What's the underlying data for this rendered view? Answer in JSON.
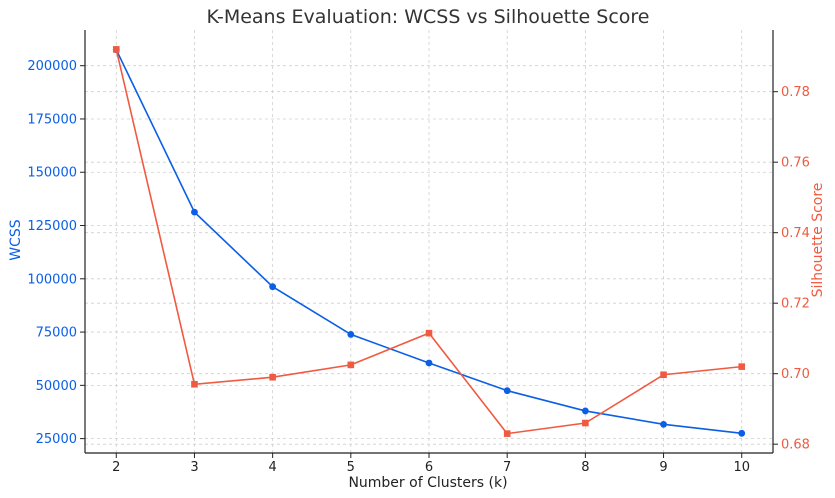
{
  "chart_data": {
    "type": "line",
    "title": "K-Means Evaluation: WCSS vs Silhouette Score",
    "xlabel": "Number of Clusters (k)",
    "x": [
      2,
      3,
      4,
      5,
      6,
      7,
      8,
      9,
      10
    ],
    "xlim": [
      1.6,
      10.4
    ],
    "grid": true,
    "legend": "none",
    "series": [
      {
        "name": "WCSS",
        "axis": "left",
        "color": "#0b5fe6",
        "marker": "circle",
        "values": [
          207500,
          131300,
          96300,
          73900,
          60500,
          47500,
          38000,
          31700,
          27500
        ]
      },
      {
        "name": "Silhouette Score",
        "axis": "right",
        "color": "#f05a40",
        "marker": "square",
        "values": [
          0.792,
          0.697,
          0.699,
          0.7025,
          0.7115,
          0.683,
          0.686,
          0.6997,
          0.702
        ]
      }
    ],
    "left_axis": {
      "label": "WCSS",
      "color": "#0b5fe6",
      "ylim": [
        18250,
        216750
      ],
      "ticks": [
        25000,
        50000,
        75000,
        100000,
        125000,
        150000,
        175000,
        200000
      ],
      "tick_labels": [
        "25000",
        "50000",
        "75000",
        "100000",
        "125000",
        "150000",
        "175000",
        "200000"
      ]
    },
    "right_axis": {
      "label": "Silhouette Score",
      "color": "#f05a40",
      "ylim": [
        0.6775,
        0.7975
      ],
      "ticks": [
        0.68,
        0.7,
        0.72,
        0.74,
        0.76,
        0.78
      ],
      "tick_labels": [
        "0.68",
        "0.70",
        "0.72",
        "0.74",
        "0.76",
        "0.78"
      ]
    }
  }
}
